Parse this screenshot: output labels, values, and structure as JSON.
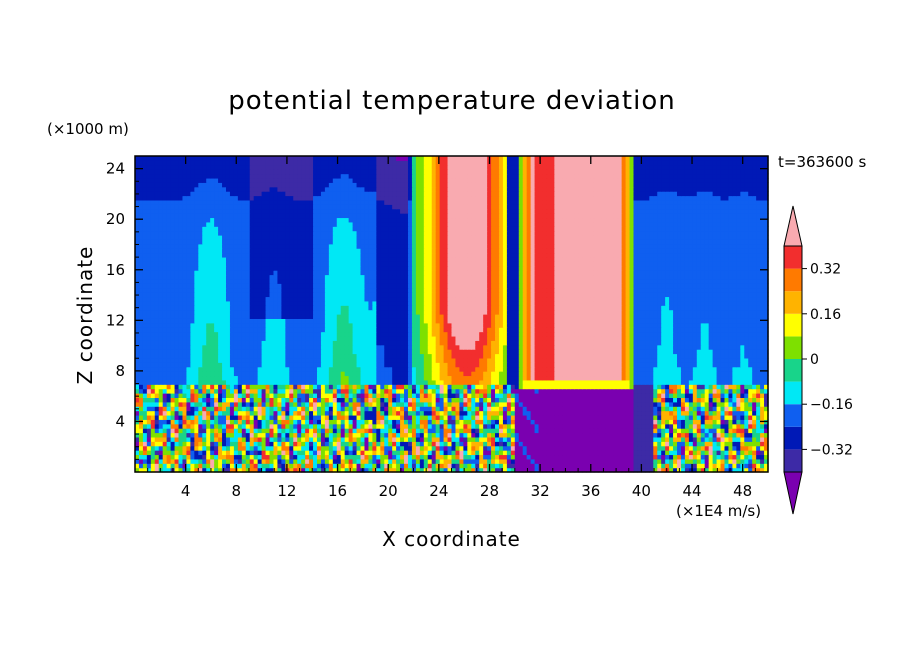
{
  "chart_data": {
    "type": "heatmap",
    "title": "potential temperature deviation",
    "xlabel": "X coordinate",
    "ylabel": "Z coordinate",
    "x_unit": "(×1E4 m/s)",
    "y_unit": "(×1000 m)",
    "time_label": "t=363600 s",
    "xlim": [
      0,
      50
    ],
    "ylim": [
      0,
      25
    ],
    "x_ticks": [
      4,
      8,
      12,
      16,
      20,
      24,
      28,
      32,
      36,
      40,
      44,
      48
    ],
    "y_ticks": [
      4,
      8,
      12,
      16,
      20,
      24
    ],
    "colorbar": {
      "levels": [
        -0.4,
        -0.32,
        -0.24,
        -0.16,
        -0.08,
        0,
        0.08,
        0.16,
        0.24,
        0.32,
        0.4
      ],
      "tick_labels": [
        "0.32",
        "0.16",
        "0",
        "−0.16",
        "−0.32"
      ],
      "tick_values": [
        0.32,
        0.16,
        0,
        -0.16,
        -0.32
      ],
      "colors": [
        "#7a00b0",
        "#3d2aa6",
        "#0019b6",
        "#0f5ff0",
        "#00e8f5",
        "#18d48a",
        "#7ee000",
        "#ffff00",
        "#ffb300",
        "#ff7a00",
        "#f22e2e",
        "#f9aab0"
      ],
      "extend": "both"
    },
    "features": [
      {
        "name": "lower turbulent layer",
        "x": [
          0,
          30
        ],
        "z": [
          0,
          7
        ],
        "value_range": [
          -0.4,
          0.4
        ]
      },
      {
        "name": "warm column",
        "x": [
          22.5,
          29.5
        ],
        "z": [
          7,
          25
        ],
        "peak": 0.4
      },
      {
        "name": "strong warm plume",
        "x": [
          30,
          39.5
        ],
        "z": [
          7,
          25
        ],
        "peak": 0.4
      },
      {
        "name": "cold pool",
        "x": [
          30,
          39.5
        ],
        "z": [
          0,
          6.5
        ],
        "value": -0.4
      },
      {
        "name": "upper background",
        "x": [
          0,
          50
        ],
        "z": [
          7,
          25
        ],
        "value": -0.24
      }
    ]
  }
}
